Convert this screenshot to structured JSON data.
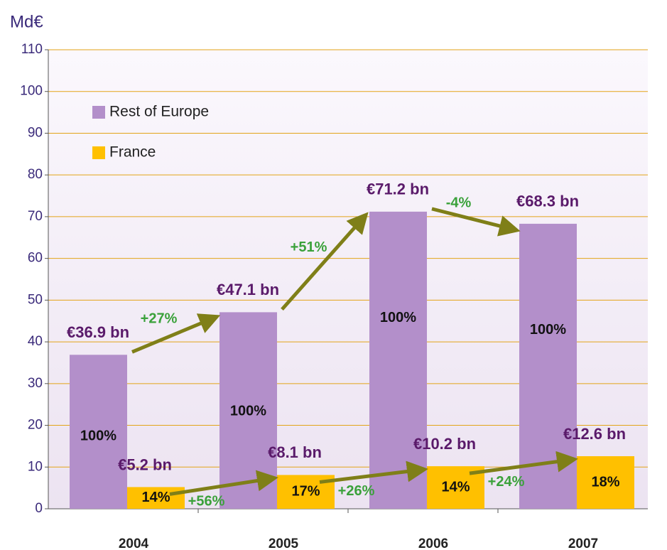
{
  "chart_data": {
    "type": "bar",
    "y_label": "Md€",
    "categories": [
      "2004",
      "2005",
      "2006",
      "2007"
    ],
    "series": [
      {
        "name": "Rest of Europe",
        "color": "#b38fca",
        "values": [
          36.9,
          47.1,
          71.2,
          68.3
        ],
        "value_labels": [
          "€36.9 bn",
          "€47.1 bn",
          "€71.2 bn",
          "€68.3 bn"
        ],
        "inner_labels": [
          "100%",
          "100%",
          "100%",
          "100%"
        ],
        "changes": [
          "+27%",
          "+51%",
          "-4%"
        ]
      },
      {
        "name": "France",
        "color": "#ffc000",
        "values": [
          5.2,
          8.1,
          10.2,
          12.6
        ],
        "value_labels": [
          "€5.2 bn",
          "€8.1 bn",
          "€10.2 bn",
          "€12.6 bn"
        ],
        "inner_labels": [
          "14%",
          "17%",
          "14%",
          "18%"
        ],
        "changes": [
          "+56%",
          "+26%",
          "+24%"
        ]
      }
    ],
    "ylim": [
      0,
      110
    ],
    "yticks": [
      0,
      10,
      20,
      30,
      40,
      50,
      60,
      70,
      80,
      90,
      100,
      110
    ],
    "grid": true,
    "legend": "top-left"
  }
}
